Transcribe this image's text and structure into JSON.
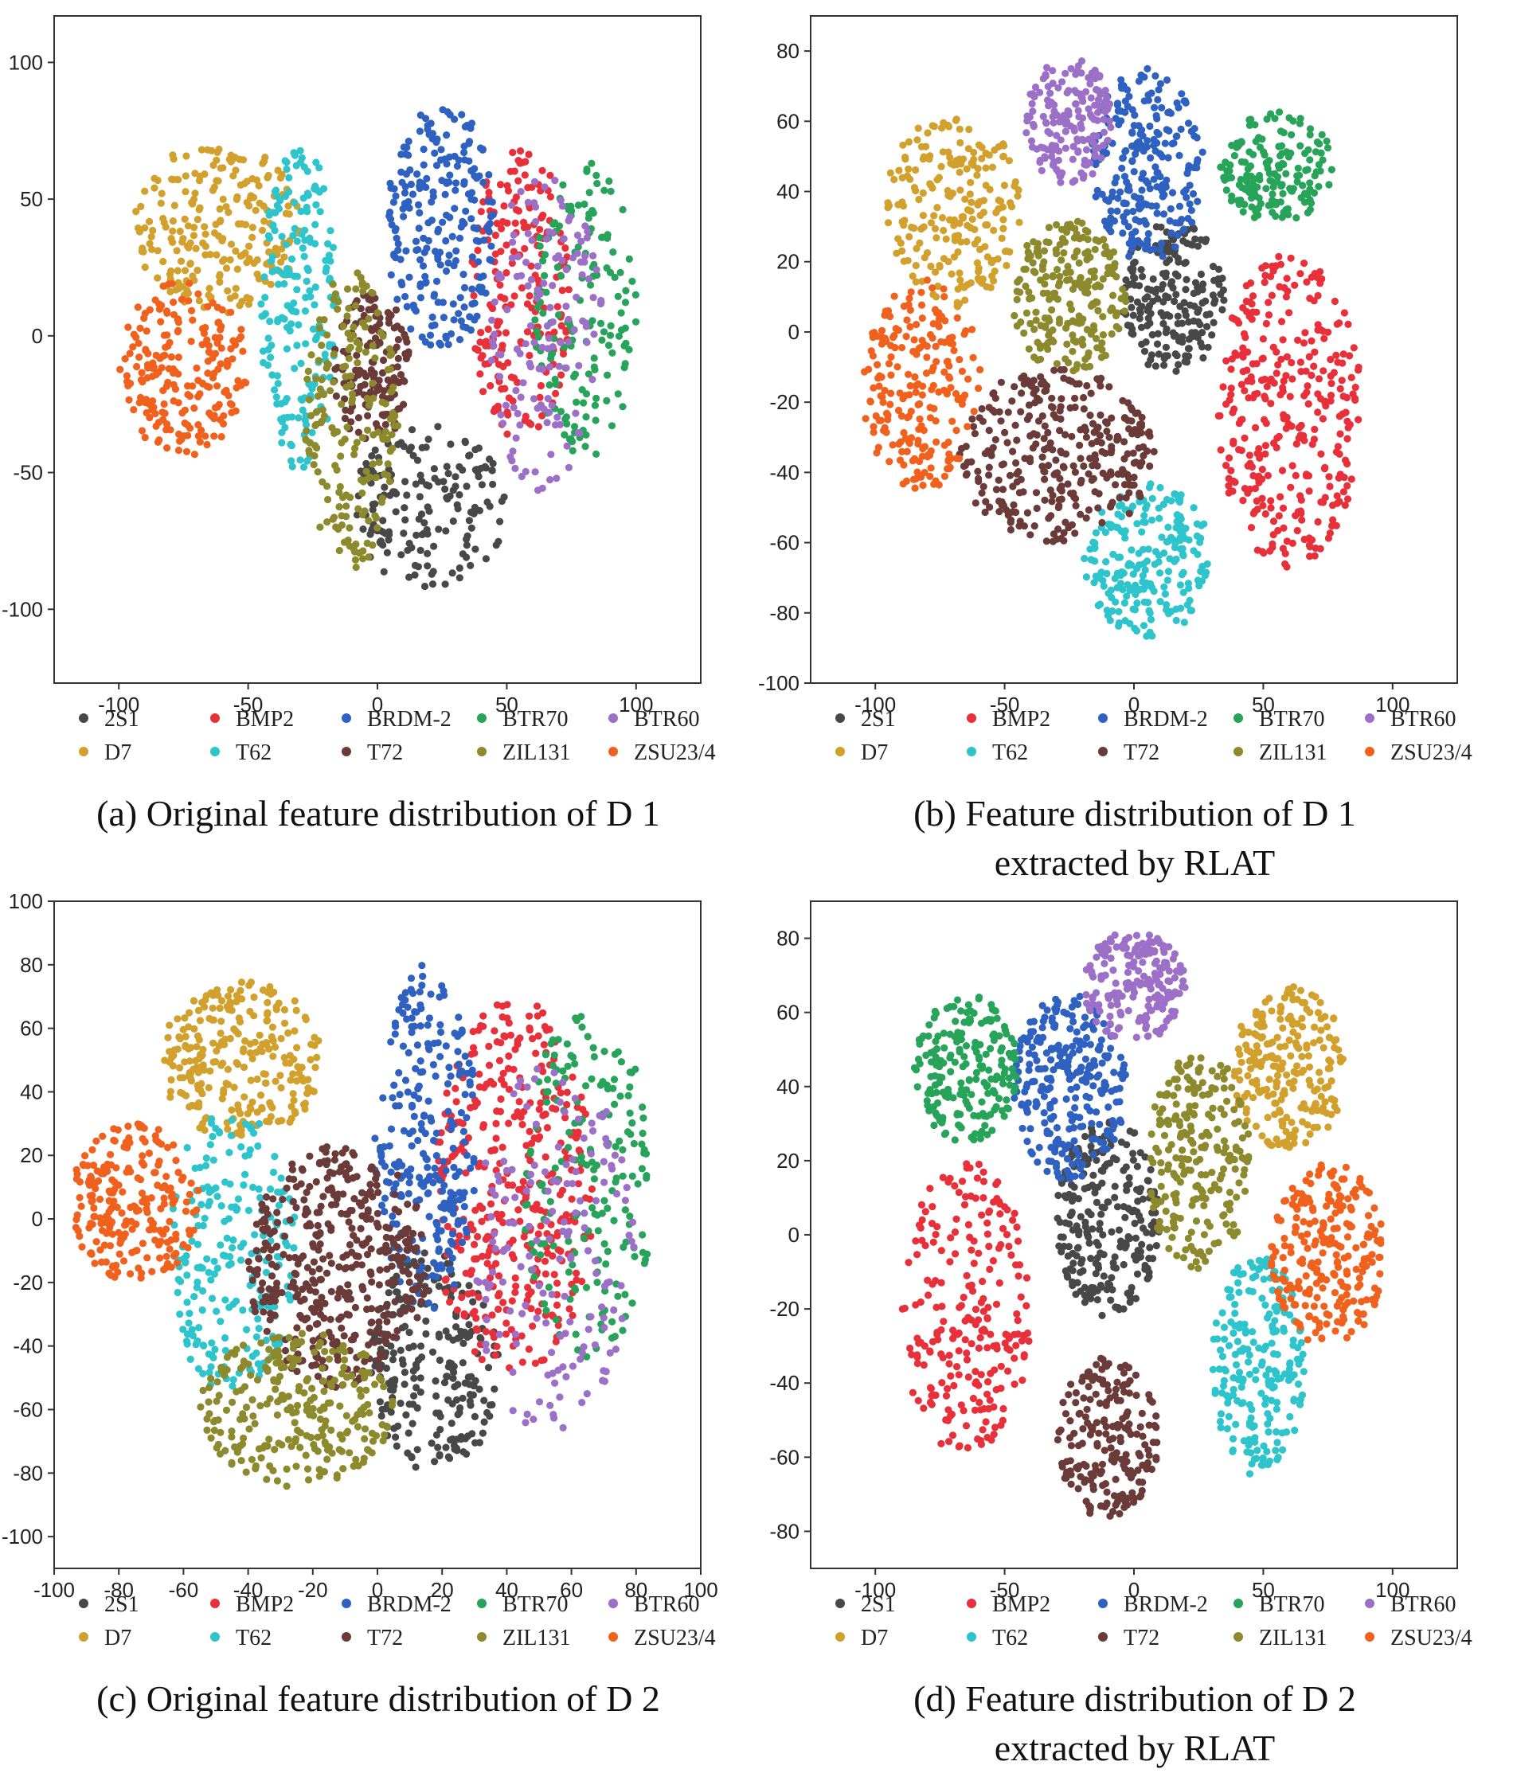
{
  "legend_entries": [
    "2S1",
    "BMP2",
    "BRDM-2",
    "BTR70",
    "BTR60",
    "D7",
    "T62",
    "T72",
    "ZIL131",
    "ZSU23/4"
  ],
  "colors": {
    "2S1": "#484848",
    "BMP2": "#e8303a",
    "BRDM-2": "#2f62c0",
    "BTR70": "#27a35a",
    "BTR60": "#9d70c8",
    "D7": "#d2a02c",
    "T62": "#2ec4cc",
    "T72": "#6a3b38",
    "ZIL131": "#8c8a2c",
    "ZSU23/4": "#f0611e"
  },
  "chart_data": [
    {
      "type": "scatter",
      "caption": [
        "(a) Original feature distribution of D 1"
      ],
      "xlim": [
        -125,
        125
      ],
      "ylim": [
        -127,
        117
      ],
      "xticks": [
        -100,
        -50,
        0,
        50,
        100
      ],
      "yticks": [
        -100,
        -50,
        0,
        50,
        100
      ],
      "clusters": [
        {
          "name": "2S1",
          "cx": 20,
          "cy": -62,
          "rx": 30,
          "ry": 30,
          "n": 170
        },
        {
          "name": "BMP2",
          "cx": 55,
          "cy": 15,
          "rx": 20,
          "ry": 55,
          "n": 200
        },
        {
          "name": "BRDM-2",
          "cx": 25,
          "cy": 40,
          "rx": 22,
          "ry": 45,
          "n": 230
        },
        {
          "name": "BTR70",
          "cx": 80,
          "cy": 10,
          "rx": 20,
          "ry": 55,
          "n": 150
        },
        {
          "name": "BTR60",
          "cx": 65,
          "cy": 0,
          "rx": 22,
          "ry": 60,
          "n": 140
        },
        {
          "name": "D7",
          "cx": -62,
          "cy": 40,
          "rx": 32,
          "ry": 32,
          "n": 230
        },
        {
          "name": "T62",
          "cx": -30,
          "cy": 10,
          "rx": 15,
          "ry": 60,
          "n": 190
        },
        {
          "name": "T72",
          "cx": -2,
          "cy": -12,
          "rx": 15,
          "ry": 28,
          "n": 150
        },
        {
          "name": "ZIL131",
          "cx": -10,
          "cy": -30,
          "rx": 18,
          "ry": 55,
          "n": 190
        },
        {
          "name": "ZSU23/4",
          "cx": -75,
          "cy": -12,
          "rx": 25,
          "ry": 32,
          "n": 210
        }
      ]
    },
    {
      "type": "scatter",
      "caption": [
        "(b) Feature distribution of D 1",
        "extracted by RLAT"
      ],
      "xlim": [
        -125,
        125
      ],
      "ylim": [
        -100,
        90
      ],
      "xticks": [
        -100,
        -50,
        0,
        50,
        100
      ],
      "yticks": [
        -100,
        -80,
        -60,
        -40,
        -20,
        0,
        20,
        40,
        60,
        80
      ],
      "clusters": [
        {
          "name": "2S1",
          "cx": 15,
          "cy": 10,
          "rx": 20,
          "ry": 22,
          "n": 200
        },
        {
          "name": "BMP2",
          "cx": 60,
          "cy": -22,
          "rx": 28,
          "ry": 45,
          "n": 330
        },
        {
          "name": "BRDM-2",
          "cx": 5,
          "cy": 48,
          "rx": 22,
          "ry": 28,
          "n": 240
        },
        {
          "name": "BTR70",
          "cx": 55,
          "cy": 47,
          "rx": 22,
          "ry": 16,
          "n": 170
        },
        {
          "name": "BTR60",
          "cx": -25,
          "cy": 60,
          "rx": 17,
          "ry": 18,
          "n": 170
        },
        {
          "name": "D7",
          "cx": -70,
          "cy": 35,
          "rx": 26,
          "ry": 28,
          "n": 220
        },
        {
          "name": "T62",
          "cx": 5,
          "cy": -65,
          "rx": 25,
          "ry": 22,
          "n": 220
        },
        {
          "name": "T72",
          "cx": -30,
          "cy": -35,
          "rx": 38,
          "ry": 25,
          "n": 320
        },
        {
          "name": "ZIL131",
          "cx": -25,
          "cy": 10,
          "rx": 22,
          "ry": 22,
          "n": 220
        },
        {
          "name": "ZSU23/4",
          "cx": -82,
          "cy": -15,
          "rx": 23,
          "ry": 30,
          "n": 220
        }
      ]
    },
    {
      "type": "scatter",
      "caption": [
        "(c) Original feature distribution of D 2"
      ],
      "xlim": [
        -100,
        100
      ],
      "ylim": [
        -110,
        100
      ],
      "xticks": [
        -100,
        -80,
        -60,
        -40,
        -20,
        0,
        20,
        40,
        60,
        80,
        100
      ],
      "yticks": [
        -100,
        -80,
        -60,
        -40,
        -20,
        0,
        20,
        40,
        60,
        80,
        100
      ],
      "clusters": [
        {
          "name": "2S1",
          "cx": 18,
          "cy": -45,
          "rx": 20,
          "ry": 35,
          "n": 230
        },
        {
          "name": "BMP2",
          "cx": 42,
          "cy": 10,
          "rx": 25,
          "ry": 60,
          "n": 380
        },
        {
          "name": "BRDM-2",
          "cx": 15,
          "cy": 25,
          "rx": 16,
          "ry": 55,
          "n": 260
        },
        {
          "name": "BTR70",
          "cx": 65,
          "cy": 10,
          "rx": 20,
          "ry": 55,
          "n": 180
        },
        {
          "name": "BTR60",
          "cx": 55,
          "cy": -10,
          "rx": 25,
          "ry": 60,
          "n": 160
        },
        {
          "name": "D7",
          "cx": -42,
          "cy": 50,
          "rx": 25,
          "ry": 25,
          "n": 260
        },
        {
          "name": "T62",
          "cx": -45,
          "cy": -10,
          "rx": 20,
          "ry": 45,
          "n": 220
        },
        {
          "name": "T72",
          "cx": -12,
          "cy": -15,
          "rx": 28,
          "ry": 38,
          "n": 420
        },
        {
          "name": "ZIL131",
          "cx": -25,
          "cy": -60,
          "rx": 30,
          "ry": 25,
          "n": 260
        },
        {
          "name": "ZSU23/4",
          "cx": -75,
          "cy": 5,
          "rx": 20,
          "ry": 25,
          "n": 230
        }
      ]
    },
    {
      "type": "scatter",
      "caption": [
        "(d) Feature distribution of D 2",
        "extracted by RLAT"
      ],
      "xlim": [
        -125,
        125
      ],
      "ylim": [
        -90,
        90
      ],
      "xticks": [
        -100,
        -50,
        0,
        50,
        100
      ],
      "yticks": [
        -80,
        -60,
        -40,
        -20,
        0,
        20,
        40,
        60,
        80
      ],
      "clusters": [
        {
          "name": "2S1",
          "cx": -10,
          "cy": 5,
          "rx": 20,
          "ry": 27,
          "n": 250
        },
        {
          "name": "BMP2",
          "cx": -65,
          "cy": -20,
          "rx": 25,
          "ry": 40,
          "n": 240
        },
        {
          "name": "BRDM-2",
          "cx": -25,
          "cy": 40,
          "rx": 22,
          "ry": 25,
          "n": 260
        },
        {
          "name": "BTR70",
          "cx": -65,
          "cy": 45,
          "rx": 20,
          "ry": 20,
          "n": 200
        },
        {
          "name": "BTR60",
          "cx": 0,
          "cy": 67,
          "rx": 20,
          "ry": 15,
          "n": 190
        },
        {
          "name": "D7",
          "cx": 60,
          "cy": 45,
          "rx": 22,
          "ry": 22,
          "n": 230
        },
        {
          "name": "T62",
          "cx": 48,
          "cy": -35,
          "rx": 18,
          "ry": 30,
          "n": 220
        },
        {
          "name": "T72",
          "cx": -10,
          "cy": -55,
          "rx": 20,
          "ry": 22,
          "n": 210
        },
        {
          "name": "ZIL131",
          "cx": 25,
          "cy": 20,
          "rx": 20,
          "ry": 30,
          "n": 230
        },
        {
          "name": "ZSU23/4",
          "cx": 75,
          "cy": -5,
          "rx": 22,
          "ry": 25,
          "n": 240
        }
      ]
    }
  ]
}
